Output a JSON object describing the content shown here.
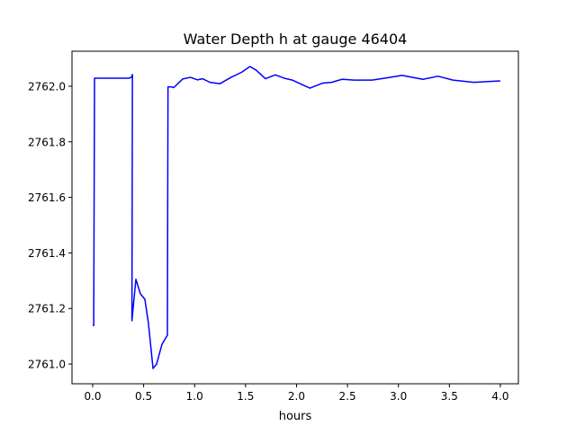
{
  "chart_data": {
    "type": "line",
    "title": "Water Depth h at gauge 46404",
    "xlabel": "hours",
    "ylabel": "",
    "xlim": [
      -0.203,
      4.177
    ],
    "ylim": [
      2760.929,
      2762.126
    ],
    "xticks": [
      0.0,
      0.5,
      1.0,
      1.5,
      2.0,
      2.5,
      3.0,
      3.5,
      4.0
    ],
    "xtick_labels": [
      "0.0",
      "0.5",
      "1.0",
      "1.5",
      "2.0",
      "2.5",
      "3.0",
      "3.5",
      "4.0"
    ],
    "yticks": [
      2761.0,
      2761.2,
      2761.4,
      2761.6,
      2761.8,
      2762.0
    ],
    "ytick_labels": [
      "2761.0",
      "2761.2",
      "2761.4",
      "2761.6",
      "2761.8",
      "2762.0"
    ],
    "grid": false,
    "series": [
      {
        "name": "h",
        "color": "#0000ff",
        "x": [
          0.0,
          0.01,
          0.018,
          0.353,
          0.38,
          0.39,
          0.385,
          0.424,
          0.468,
          0.512,
          0.547,
          0.592,
          0.627,
          0.68,
          0.733,
          0.739,
          0.77,
          0.795,
          0.883,
          0.96,
          1.027,
          1.077,
          1.151,
          1.248,
          1.357,
          1.46,
          1.543,
          1.607,
          1.695,
          1.793,
          1.887,
          1.96,
          2.131,
          2.254,
          2.343,
          2.446,
          2.563,
          2.74,
          2.887,
          3.035,
          3.24,
          3.388,
          3.535,
          3.741,
          3.976,
          4.0
        ],
        "y": [
          2761.139,
          2761.139,
          2762.029,
          2762.029,
          2762.032,
          2762.042,
          2761.156,
          2761.305,
          2761.253,
          2761.233,
          2761.146,
          2760.984,
          2761.0,
          2761.071,
          2761.104,
          2761.998,
          2761.998,
          2761.995,
          2762.026,
          2762.032,
          2762.023,
          2762.027,
          2762.014,
          2762.009,
          2762.032,
          2762.05,
          2762.071,
          2762.057,
          2762.027,
          2762.041,
          2762.028,
          2762.022,
          2761.993,
          2762.011,
          2762.014,
          2762.025,
          2762.022,
          2762.022,
          2762.03,
          2762.039,
          2762.025,
          2762.036,
          2762.022,
          2762.014,
          2762.019,
          2762.019
        ]
      }
    ]
  }
}
